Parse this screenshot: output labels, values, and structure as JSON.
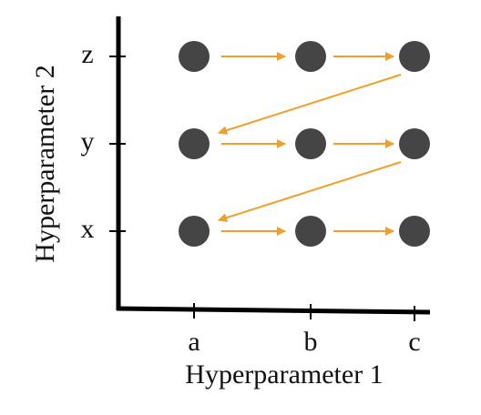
{
  "axes": {
    "x": {
      "title": "Hyperparameter 1",
      "ticks": [
        "a",
        "b",
        "c"
      ]
    },
    "y": {
      "title": "Hyperparameter 2",
      "ticks": [
        "x",
        "y",
        "z"
      ]
    }
  }
}
